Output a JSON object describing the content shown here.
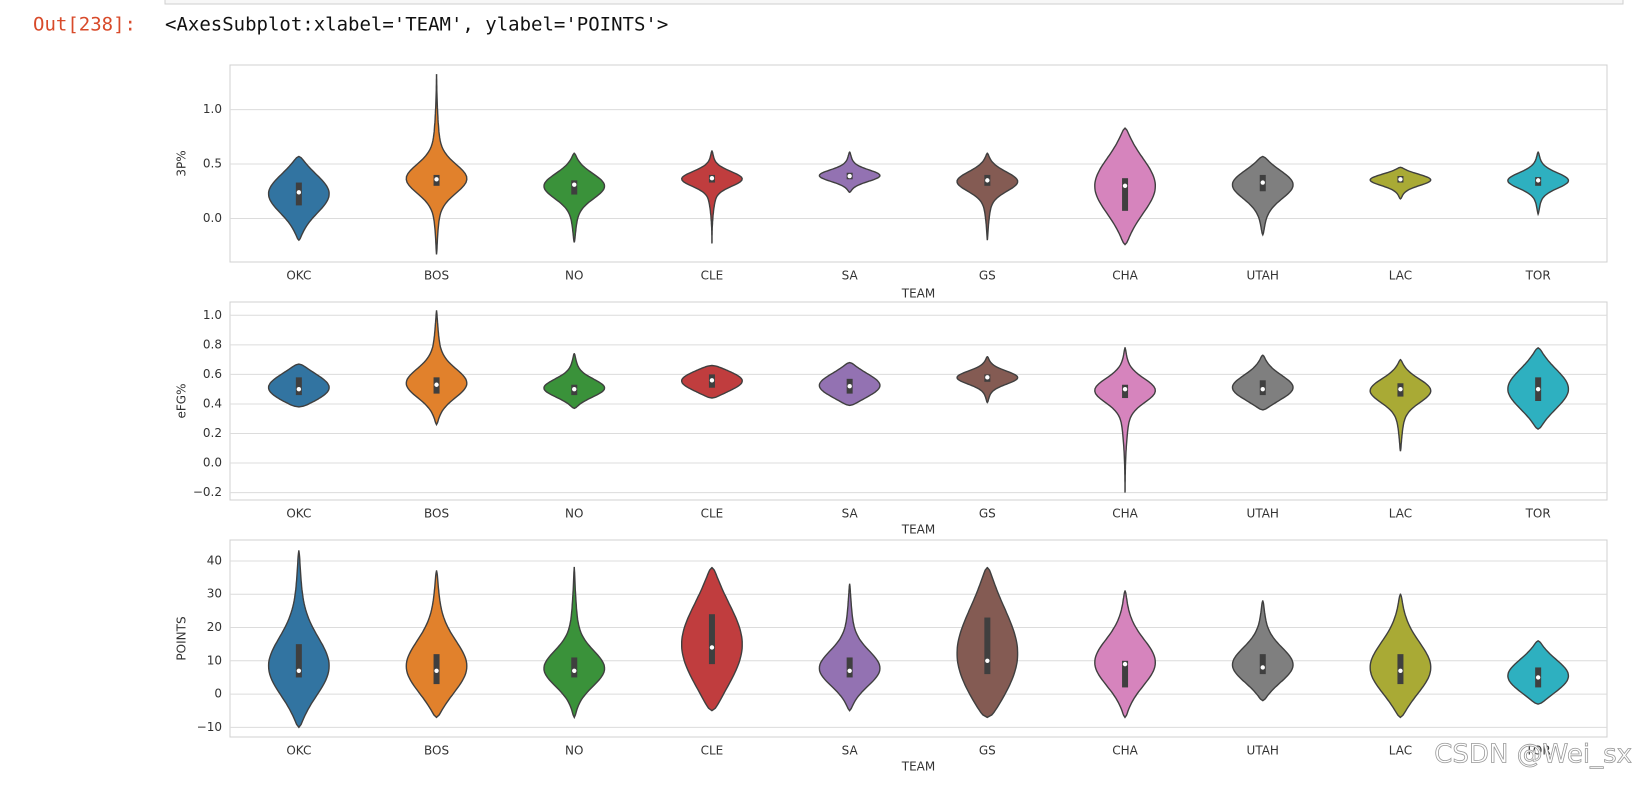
{
  "prompt": "Out[238]:",
  "output_text": "<AxesSubplot:xlabel='TEAM', ylabel='POINTS'>",
  "watermark": "CSDN @Wei_sx",
  "chart_data": [
    {
      "type": "violin",
      "xlabel": "TEAM",
      "ylabel": "3P%",
      "grid": true,
      "categories": [
        "OKC",
        "BOS",
        "NO",
        "CLE",
        "SA",
        "GS",
        "CHA",
        "UTAH",
        "LAC",
        "TOR"
      ],
      "colors": [
        "#3274a1",
        "#e1812c",
        "#3a923a",
        "#c03d3e",
        "#9372b2",
        "#845b53",
        "#d684bd",
        "#7f7f7f",
        "#a9aa35",
        "#2eb0c0"
      ],
      "min": [
        -0.2,
        -0.33,
        -0.22,
        -0.23,
        0.24,
        -0.2,
        -0.24,
        -0.15,
        0.18,
        0.04
      ],
      "q1": [
        0.12,
        0.3,
        0.22,
        0.33,
        0.36,
        0.3,
        0.07,
        0.25,
        0.33,
        0.3
      ],
      "median": [
        0.24,
        0.36,
        0.31,
        0.37,
        0.39,
        0.35,
        0.3,
        0.33,
        0.36,
        0.35
      ],
      "q3": [
        0.33,
        0.4,
        0.35,
        0.4,
        0.42,
        0.4,
        0.37,
        0.4,
        0.39,
        0.38
      ],
      "max": [
        0.57,
        1.32,
        0.6,
        0.62,
        0.61,
        0.6,
        0.83,
        0.57,
        0.47,
        0.61
      ],
      "ylim": [
        -0.4,
        1.41
      ],
      "yticks": [
        {
          "value": 0,
          "label": "0.0"
        },
        {
          "value": 0.5,
          "label": "0.5"
        },
        {
          "value": 1,
          "label": "1.0"
        }
      ]
    },
    {
      "type": "violin",
      "xlabel": "TEAM",
      "ylabel": "eFG%",
      "grid": true,
      "categories": [
        "OKC",
        "BOS",
        "NO",
        "CLE",
        "SA",
        "GS",
        "CHA",
        "UTAH",
        "LAC",
        "TOR"
      ],
      "colors": [
        "#3274a1",
        "#e1812c",
        "#3a923a",
        "#c03d3e",
        "#9372b2",
        "#845b53",
        "#d684bd",
        "#7f7f7f",
        "#a9aa35",
        "#2eb0c0"
      ],
      "min": [
        0.38,
        0.26,
        0.37,
        0.44,
        0.39,
        0.41,
        -0.2,
        0.36,
        0.08,
        0.23
      ],
      "q1": [
        0.46,
        0.47,
        0.46,
        0.51,
        0.47,
        0.55,
        0.44,
        0.46,
        0.45,
        0.42
      ],
      "median": [
        0.5,
        0.53,
        0.5,
        0.56,
        0.52,
        0.58,
        0.5,
        0.5,
        0.5,
        0.5
      ],
      "q3": [
        0.58,
        0.58,
        0.53,
        0.6,
        0.57,
        0.6,
        0.53,
        0.56,
        0.54,
        0.58
      ],
      "max": [
        0.67,
        1.03,
        0.74,
        0.66,
        0.68,
        0.72,
        0.78,
        0.73,
        0.7,
        0.78
      ],
      "ylim": [
        -0.25,
        1.09
      ],
      "yticks": [
        {
          "value": -0.2,
          "label": "−0.2"
        },
        {
          "value": 0,
          "label": "0.0"
        },
        {
          "value": 0.2,
          "label": "0.2"
        },
        {
          "value": 0.4,
          "label": "0.4"
        },
        {
          "value": 0.6,
          "label": "0.6"
        },
        {
          "value": 0.8,
          "label": "0.8"
        },
        {
          "value": 1,
          "label": "1.0"
        }
      ]
    },
    {
      "type": "violin",
      "xlabel": "TEAM",
      "ylabel": "POINTS",
      "grid": true,
      "categories": [
        "OKC",
        "BOS",
        "NO",
        "CLE",
        "SA",
        "GS",
        "CHA",
        "UTAH",
        "LAC",
        "TOR"
      ],
      "colors": [
        "#3274a1",
        "#e1812c",
        "#3a923a",
        "#c03d3e",
        "#9372b2",
        "#845b53",
        "#d684bd",
        "#7f7f7f",
        "#a9aa35",
        "#2eb0c0"
      ],
      "min": [
        -10,
        -7,
        -7,
        -5,
        -5,
        -7,
        -7,
        -2,
        -7,
        -3
      ],
      "q1": [
        5,
        3,
        5,
        9,
        5,
        6,
        2,
        6,
        3,
        2
      ],
      "median": [
        7,
        7,
        7,
        14,
        7,
        10,
        9,
        8,
        7,
        5
      ],
      "q3": [
        15,
        12,
        11,
        24,
        11,
        23,
        10,
        12,
        12,
        8
      ],
      "max": [
        43,
        37,
        38,
        38,
        33,
        38,
        31,
        28,
        30,
        16
      ],
      "ylim": [
        -12.9,
        46.3
      ],
      "yticks": [
        {
          "value": -10,
          "label": "−10"
        },
        0,
        10,
        20,
        30,
        40
      ]
    }
  ]
}
